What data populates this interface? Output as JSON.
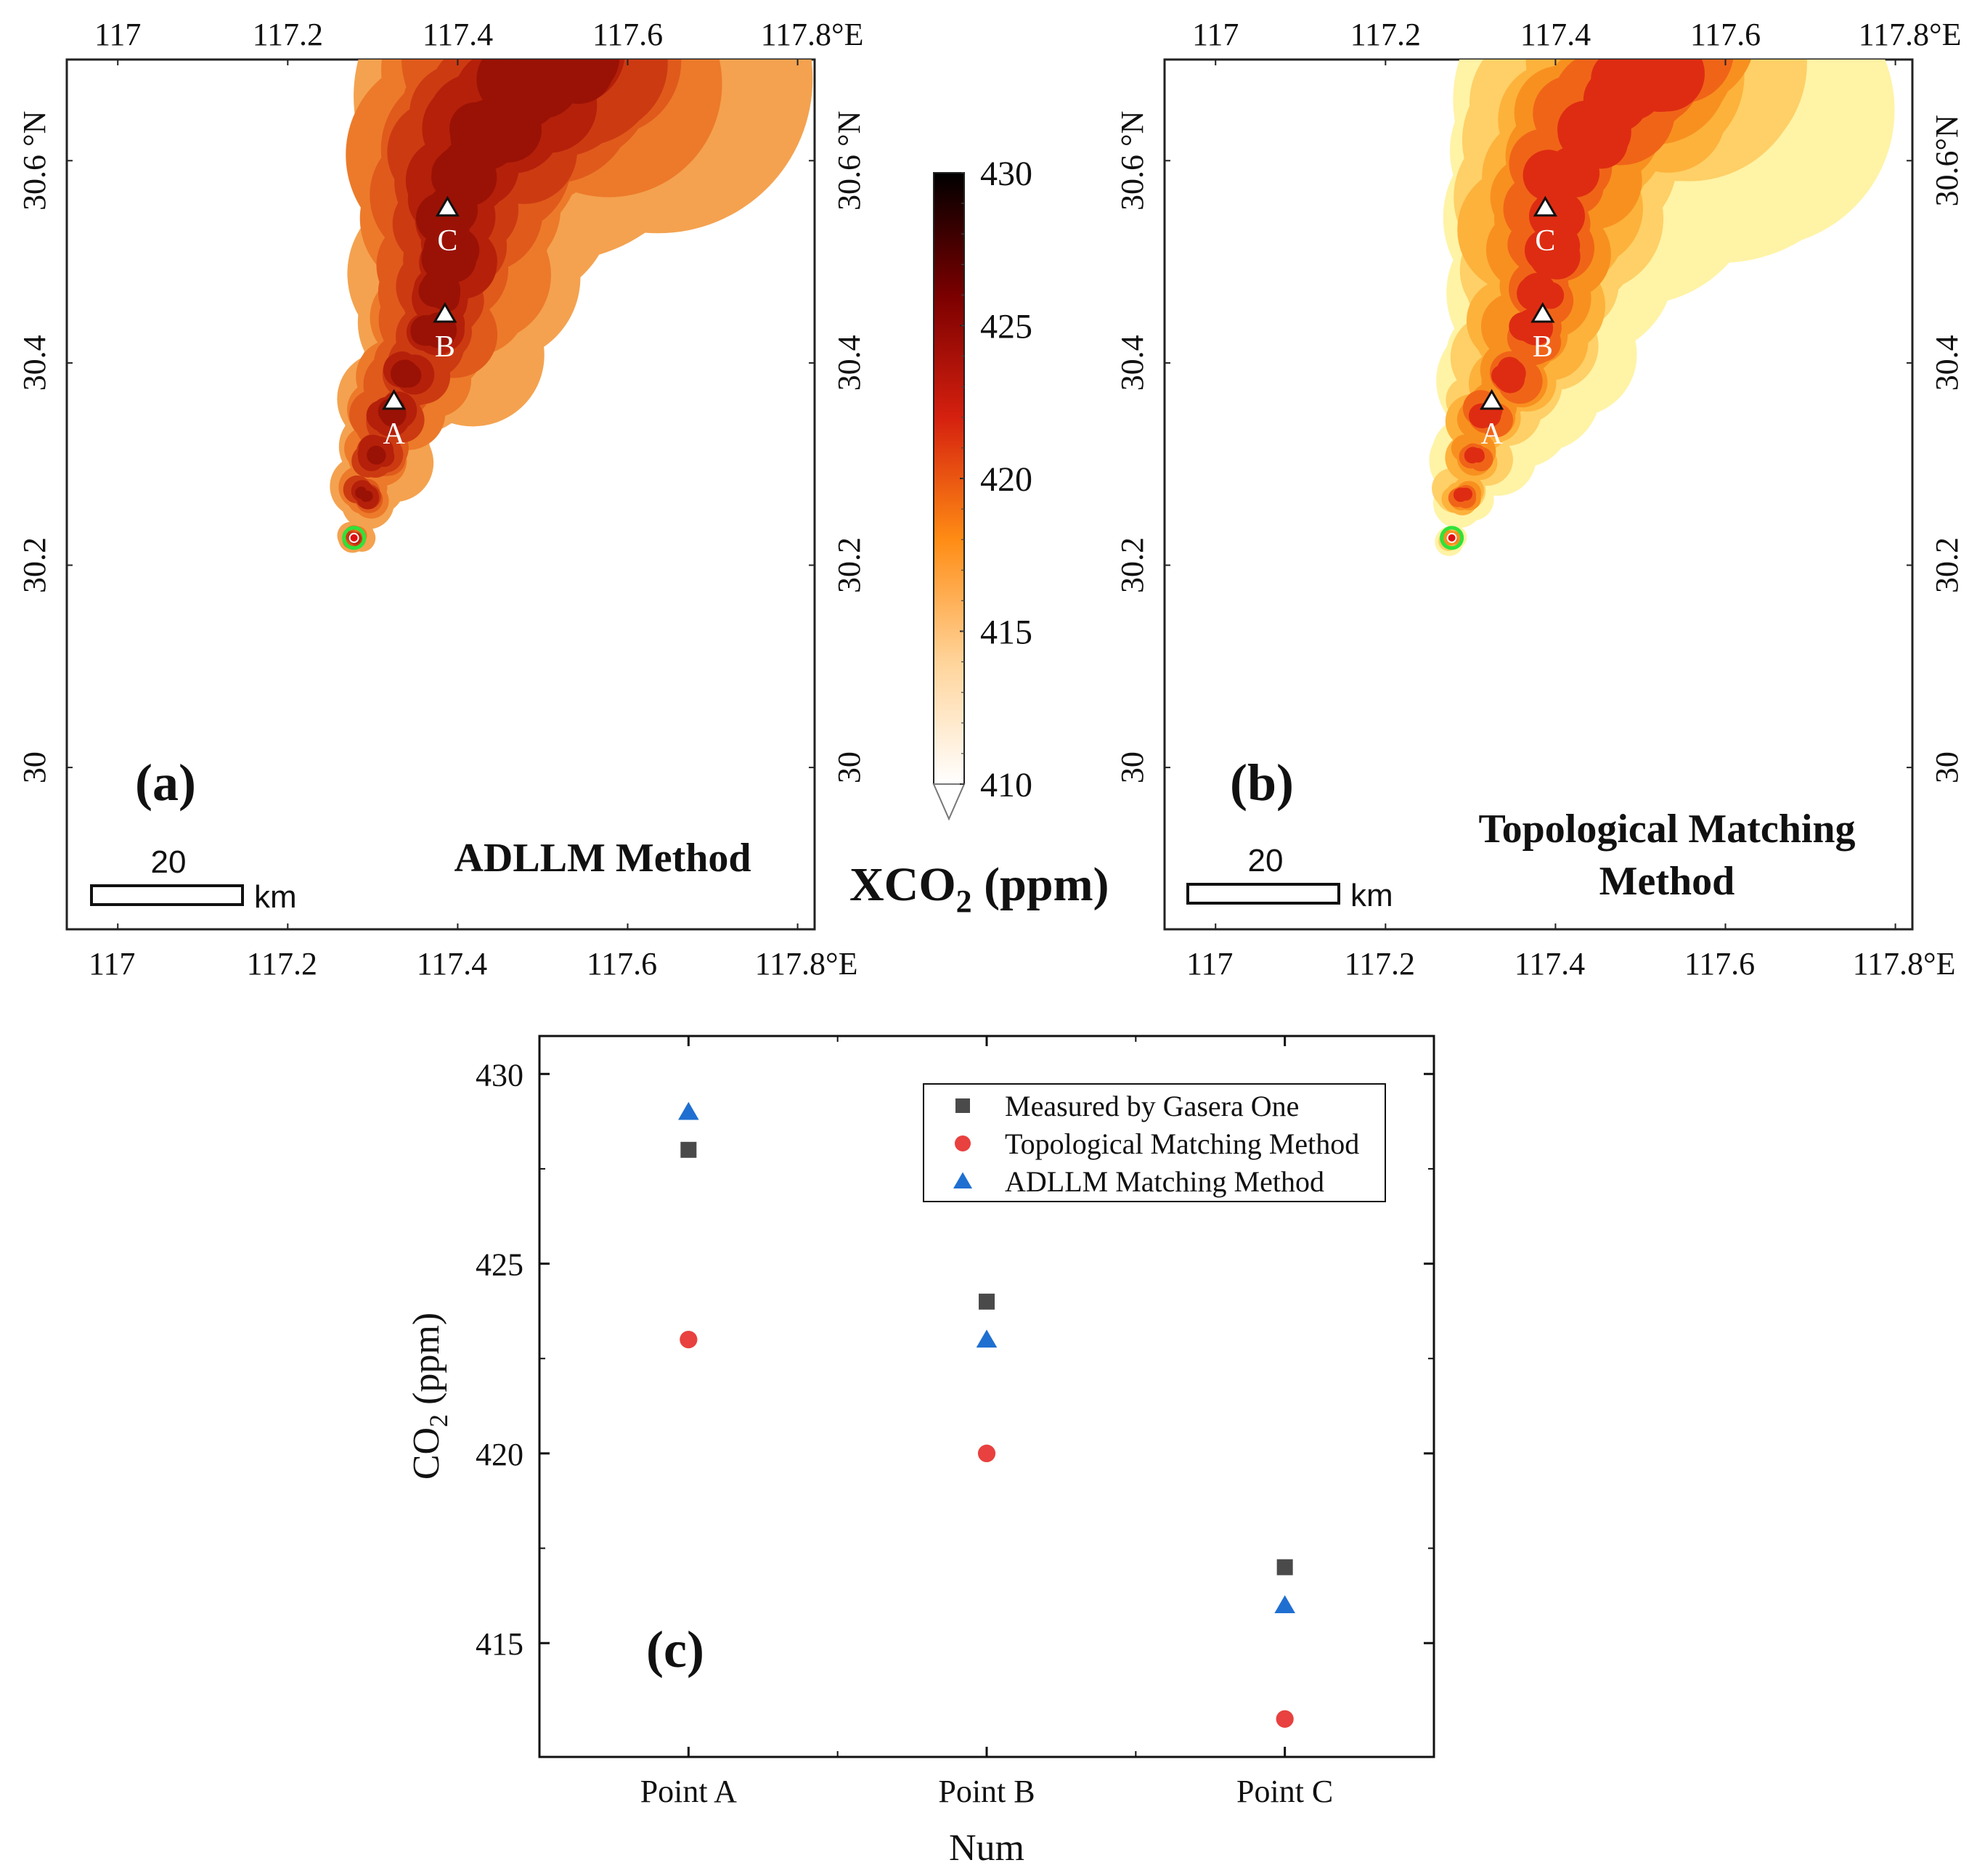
{
  "maps": [
    {
      "panel_label": "(a)",
      "method_title_lines": [
        "ADLLM Method"
      ],
      "lon_ticks": [
        "117",
        "117.2",
        "117.4",
        "117.6",
        "117.8°E"
      ],
      "lat_ticks_left": [
        "30",
        "30.2",
        "30.4",
        "30.6 °N"
      ],
      "lat_ticks_right": [
        "30",
        "30.2",
        "30.4",
        "30.6 °N"
      ],
      "lon_range": [
        116.94,
        117.82
      ],
      "lat_range": [
        29.84,
        30.7
      ],
      "points": [
        {
          "label": "A",
          "lon": 117.325,
          "lat": 30.362
        },
        {
          "label": "B",
          "lon": 117.385,
          "lat": 30.448
        },
        {
          "label": "C",
          "lon": 117.388,
          "lat": 30.553
        }
      ],
      "source": {
        "lon": 117.278,
        "lat": 30.227
      },
      "scale_bar": {
        "value": "20",
        "unit": "km"
      },
      "palette": "dark"
    },
    {
      "panel_label": "(b)",
      "method_title_lines": [
        "Topological Matching",
        "Method"
      ],
      "lon_ticks": [
        "117",
        "117.2",
        "117.4",
        "117.6",
        "117.8°E"
      ],
      "lat_ticks_left": [
        "30",
        "30.2",
        "30.4",
        "30.6 °N"
      ],
      "lat_ticks_right": [
        "30",
        "30.2",
        "30.4",
        "30.6°N"
      ],
      "lon_range": [
        116.94,
        117.82
      ],
      "lat_range": [
        29.84,
        30.7
      ],
      "points": [
        {
          "label": "A",
          "lon": 117.325,
          "lat": 30.362
        },
        {
          "label": "B",
          "lon": 117.385,
          "lat": 30.448
        },
        {
          "label": "C",
          "lon": 117.388,
          "lat": 30.553
        }
      ],
      "source": {
        "lon": 117.278,
        "lat": 30.227
      },
      "scale_bar": {
        "value": "20",
        "unit": "km"
      },
      "palette": "light"
    }
  ],
  "colorbar": {
    "ticks": [
      "430",
      "425",
      "420",
      "415",
      "410"
    ],
    "min": 410,
    "max": 430,
    "label_main": "XCO",
    "label_sub": "2",
    "label_unit": " (ppm)",
    "stops": [
      "#ffffff",
      "#ffd49a",
      "#ff8c14",
      "#d5200f",
      "#7a0000",
      "#000000"
    ]
  },
  "chart_data": {
    "type": "scatter",
    "panel_label": "(c)",
    "categories": [
      "Point A",
      "Point B",
      "Point C"
    ],
    "xlabel": "Num",
    "ylabel_main": "CO",
    "ylabel_sub": "2",
    "ylabel_unit": " (ppm)",
    "ylim": [
      412,
      431
    ],
    "yticks": [
      415,
      420,
      425,
      430
    ],
    "legend_position": "top-right",
    "series": [
      {
        "name": "Measured by Gasera One",
        "marker": "square",
        "color": "#4a4a4a",
        "values": [
          428,
          424,
          417
        ]
      },
      {
        "name": "Topological Matching Method",
        "marker": "circle",
        "color": "#e8413f",
        "values": [
          423,
          420,
          413
        ]
      },
      {
        "name": "ADLLM Matching Method",
        "marker": "triangle",
        "color": "#1f6fd1",
        "values": [
          429,
          423,
          416
        ]
      }
    ]
  }
}
